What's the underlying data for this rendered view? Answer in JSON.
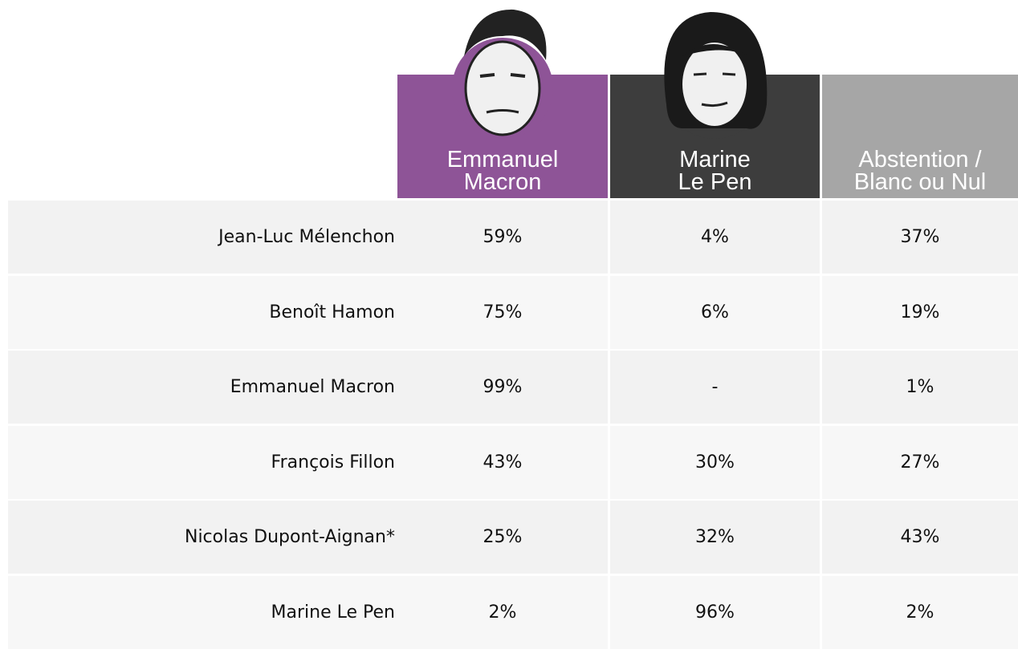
{
  "table": {
    "columns": [
      {
        "lines": [
          "Emmanuel",
          "Macron"
        ]
      },
      {
        "lines": [
          "Marine",
          "Le Pen"
        ]
      },
      {
        "lines": [
          "Abstention /",
          "Blanc ou Nul"
        ]
      }
    ],
    "rows": [
      [
        "Jean-Luc Mélenchon",
        "59%",
        "4%",
        "37%"
      ],
      [
        "Benoît Hamon",
        "75%",
        "6%",
        "19%"
      ],
      [
        "Emmanuel Macron",
        "99%",
        "-",
        "1%"
      ],
      [
        "François Fillon",
        "43%",
        "30%",
        "27%"
      ],
      [
        "Nicolas Dupont-Aignan*",
        "25%",
        "32%",
        "43%"
      ],
      [
        "Marine Le Pen",
        "2%",
        "96%",
        "2%"
      ]
    ]
  }
}
